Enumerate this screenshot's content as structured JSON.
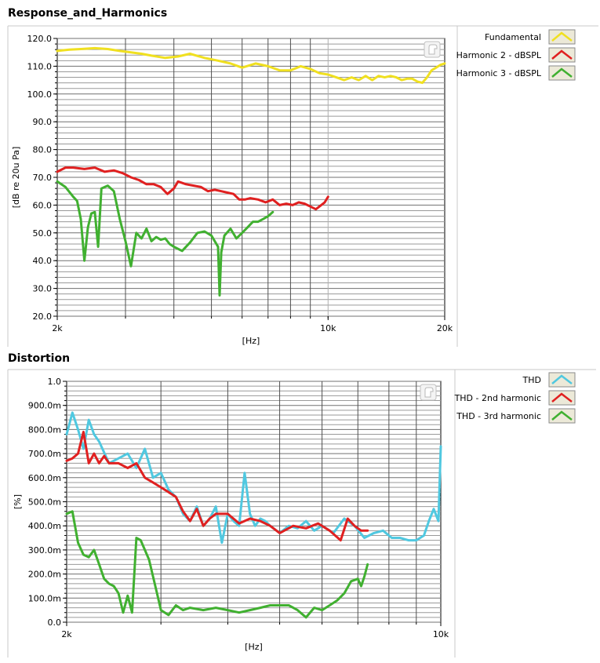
{
  "chart_data": [
    {
      "type": "line",
      "title": "Response_and_Harmonics",
      "xlabel": "[Hz]",
      "ylabel": "[dB re 20u Pa]",
      "xscale": "log",
      "xlim": [
        2000,
        20000
      ],
      "ylim": [
        20,
        120
      ],
      "xticks": [
        2000,
        10000,
        20000
      ],
      "xtick_labels": [
        "2k",
        "10k",
        "20k"
      ],
      "yticks": [
        20,
        30,
        40,
        50,
        60,
        70,
        80,
        90,
        100,
        110,
        120
      ],
      "ytick_labels": [
        "20.0",
        "30.0",
        "40.0",
        "50.0",
        "60.0",
        "70.0",
        "80.0",
        "90.0",
        "100.0",
        "110.0",
        "120.0"
      ],
      "grid": true,
      "legend_position": "right",
      "series": [
        {
          "name": "Fundamental",
          "color": "#f0e020",
          "x": [
            2000,
            2150,
            2300,
            2500,
            2700,
            2900,
            3100,
            3300,
            3500,
            3800,
            4100,
            4400,
            4800,
            5200,
            5600,
            6000,
            6500,
            7000,
            7500,
            8000,
            8500,
            9000,
            9500,
            10000,
            10500,
            11000,
            11500,
            12000,
            12500,
            13000,
            13500,
            14000,
            14500,
            15000,
            15500,
            16000,
            16500,
            17000,
            17500,
            18000,
            18500,
            19000,
            19500,
            20000
          ],
          "values": [
            115.5,
            116.0,
            116.2,
            116.5,
            116.2,
            115.5,
            115.0,
            114.5,
            113.8,
            113.0,
            113.5,
            114.5,
            113.0,
            112.0,
            111.0,
            109.5,
            111.0,
            110.0,
            108.5,
            108.5,
            110.0,
            109.0,
            107.5,
            107.0,
            106.0,
            105.0,
            106.0,
            105.0,
            106.5,
            105.0,
            106.5,
            106.0,
            106.5,
            106.0,
            105.0,
            105.5,
            105.5,
            104.5,
            104.0,
            106.0,
            108.5,
            109.5,
            110.5,
            111.0
          ]
        },
        {
          "name": "Harmonic 2 - dBSPL",
          "color": "#e02020",
          "x": [
            2000,
            2100,
            2200,
            2350,
            2500,
            2650,
            2800,
            2950,
            3100,
            3250,
            3400,
            3550,
            3700,
            3850,
            4000,
            4100,
            4300,
            4500,
            4700,
            4900,
            5100,
            5300,
            5500,
            5700,
            5900,
            6100,
            6300,
            6600,
            6900,
            7200,
            7500,
            7800,
            8100,
            8400,
            8700,
            9000,
            9300,
            9600,
            9800,
            10000
          ],
          "values": [
            72.0,
            73.5,
            73.5,
            73.0,
            73.5,
            72.0,
            72.5,
            71.5,
            70.0,
            69.0,
            67.5,
            67.5,
            66.5,
            64.0,
            66.0,
            68.5,
            67.5,
            67.0,
            66.5,
            65.0,
            65.5,
            65.0,
            64.5,
            64.0,
            62.0,
            62.0,
            62.5,
            62.0,
            61.0,
            62.0,
            60.0,
            60.5,
            60.0,
            61.0,
            60.5,
            59.5,
            58.5,
            60.0,
            61.0,
            63.0
          ]
        },
        {
          "name": "Harmonic 3 - dBSPL",
          "color": "#40b030",
          "x": [
            2000,
            2100,
            2200,
            2250,
            2300,
            2350,
            2400,
            2450,
            2500,
            2550,
            2600,
            2700,
            2800,
            2900,
            3000,
            3100,
            3200,
            3300,
            3400,
            3500,
            3600,
            3700,
            3800,
            3900,
            4000,
            4200,
            4400,
            4600,
            4800,
            5000,
            5200,
            5250,
            5300,
            5400,
            5600,
            5800,
            6000,
            6200,
            6400,
            6600,
            6800,
            7000,
            7200
          ],
          "values": [
            68.5,
            66.5,
            63.0,
            61.5,
            55.0,
            40.0,
            52.0,
            57.0,
            57.5,
            45.0,
            66.0,
            67.0,
            65.0,
            55.0,
            47.0,
            38.0,
            50.0,
            48.0,
            51.5,
            47.0,
            48.5,
            47.5,
            48.0,
            46.0,
            45.0,
            43.5,
            46.5,
            50.0,
            50.5,
            49.0,
            45.0,
            27.5,
            43.0,
            49.0,
            51.5,
            48.0,
            50.0,
            52.0,
            54.0,
            54.0,
            55.0,
            56.0,
            57.5
          ]
        }
      ]
    },
    {
      "type": "line",
      "title": "Distortion",
      "xlabel": "[Hz]",
      "ylabel": "[%]",
      "xscale": "log",
      "xlim": [
        2000,
        10000
      ],
      "ylim": [
        0,
        1.0
      ],
      "xticks": [
        2000,
        10000
      ],
      "xtick_labels": [
        "2k",
        "10k"
      ],
      "yticks": [
        0,
        0.1,
        0.2,
        0.3,
        0.4,
        0.5,
        0.6,
        0.7,
        0.8,
        0.9,
        1.0
      ],
      "ytick_labels": [
        "0.0",
        "100.0m",
        "200.0m",
        "300.0m",
        "400.0m",
        "500.0m",
        "600.0m",
        "700.0m",
        "800.0m",
        "900.0m",
        "1.0"
      ],
      "grid": true,
      "legend_position": "right",
      "series": [
        {
          "name": "THD",
          "color": "#50c8e0",
          "x": [
            2000,
            2050,
            2100,
            2150,
            2200,
            2250,
            2300,
            2400,
            2500,
            2600,
            2700,
            2800,
            2900,
            3000,
            3100,
            3200,
            3300,
            3400,
            3500,
            3600,
            3700,
            3800,
            3900,
            4000,
            4100,
            4200,
            4300,
            4400,
            4500,
            4600,
            4700,
            4800,
            5000,
            5200,
            5400,
            5600,
            5800,
            6000,
            6300,
            6600,
            6900,
            7200,
            7500,
            7800,
            8100,
            8400,
            8700,
            9000,
            9300,
            9500,
            9700,
            9900,
            10000
          ],
          "values": [
            0.78,
            0.87,
            0.8,
            0.72,
            0.84,
            0.78,
            0.75,
            0.66,
            0.68,
            0.7,
            0.64,
            0.72,
            0.6,
            0.62,
            0.55,
            0.52,
            0.45,
            0.42,
            0.48,
            0.4,
            0.43,
            0.48,
            0.33,
            0.45,
            0.42,
            0.4,
            0.62,
            0.45,
            0.4,
            0.43,
            0.42,
            0.4,
            0.37,
            0.4,
            0.39,
            0.42,
            0.38,
            0.4,
            0.37,
            0.43,
            0.4,
            0.35,
            0.37,
            0.38,
            0.35,
            0.35,
            0.34,
            0.34,
            0.36,
            0.42,
            0.47,
            0.42,
            0.73
          ]
        },
        {
          "name": "THD - 2nd harmonic",
          "color": "#e02020",
          "x": [
            2000,
            2050,
            2100,
            2150,
            2200,
            2250,
            2300,
            2350,
            2400,
            2500,
            2600,
            2700,
            2800,
            2900,
            3000,
            3100,
            3200,
            3300,
            3400,
            3500,
            3600,
            3700,
            3800,
            4000,
            4200,
            4400,
            4600,
            4800,
            5000,
            5300,
            5600,
            5900,
            6200,
            6500,
            6700,
            6900,
            7100,
            7300
          ],
          "values": [
            0.67,
            0.68,
            0.7,
            0.79,
            0.66,
            0.7,
            0.66,
            0.69,
            0.66,
            0.66,
            0.64,
            0.66,
            0.6,
            0.58,
            0.56,
            0.54,
            0.52,
            0.46,
            0.42,
            0.47,
            0.4,
            0.43,
            0.45,
            0.45,
            0.41,
            0.43,
            0.42,
            0.4,
            0.37,
            0.4,
            0.39,
            0.41,
            0.38,
            0.34,
            0.43,
            0.4,
            0.38,
            0.38
          ]
        },
        {
          "name": "THD - 3rd harmonic",
          "color": "#40b030",
          "x": [
            2000,
            2050,
            2100,
            2150,
            2200,
            2250,
            2300,
            2350,
            2400,
            2450,
            2500,
            2550,
            2600,
            2650,
            2700,
            2750,
            2800,
            2850,
            2900,
            2950,
            3000,
            3100,
            3200,
            3300,
            3400,
            3600,
            3800,
            4000,
            4200,
            4400,
            4600,
            4800,
            5000,
            5200,
            5400,
            5600,
            5800,
            6000,
            6200,
            6400,
            6600,
            6800,
            7000,
            7100,
            7200,
            7300
          ],
          "values": [
            0.45,
            0.46,
            0.33,
            0.28,
            0.27,
            0.3,
            0.24,
            0.18,
            0.16,
            0.15,
            0.12,
            0.04,
            0.11,
            0.04,
            0.35,
            0.34,
            0.3,
            0.26,
            0.19,
            0.12,
            0.05,
            0.03,
            0.07,
            0.05,
            0.06,
            0.05,
            0.06,
            0.05,
            0.04,
            0.05,
            0.06,
            0.07,
            0.07,
            0.07,
            0.05,
            0.02,
            0.06,
            0.05,
            0.07,
            0.09,
            0.12,
            0.17,
            0.18,
            0.15,
            0.19,
            0.24
          ]
        }
      ]
    }
  ]
}
